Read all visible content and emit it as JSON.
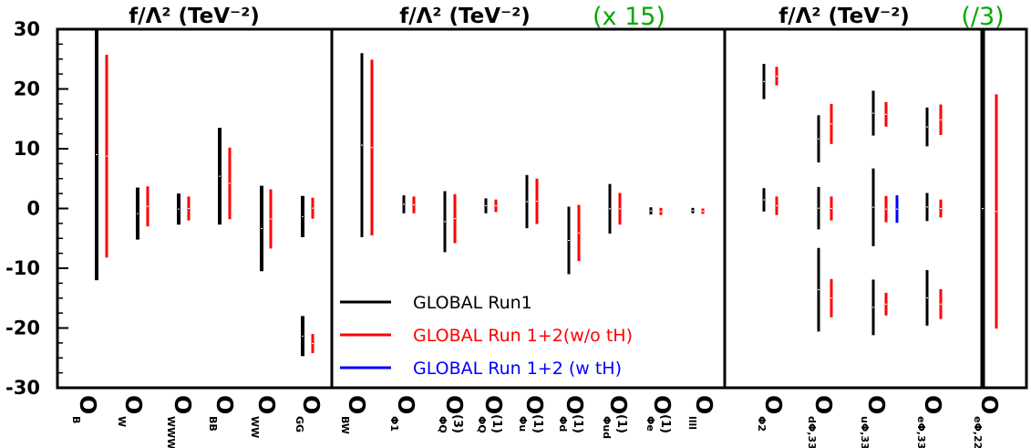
{
  "chart_data": {
    "type": "error-bar",
    "ylim": [
      -30,
      30
    ],
    "yticks": [
      -30,
      -20,
      -10,
      0,
      10,
      20,
      30
    ],
    "grid": false,
    "colors": {
      "run1": "#000000",
      "run12_wo_tH": "#ff0000",
      "run12_w_tH": "#0000ff",
      "scale_note": "#00aa00"
    },
    "legend": {
      "placement": "inside middle panel, bottom-left",
      "entries": [
        {
          "key": "run1",
          "label": "GLOBAL Run1",
          "color": "#000000"
        },
        {
          "key": "run12_wo_tH",
          "label": "GLOBAL Run 1+2(w/o tH)",
          "color": "#ff0000"
        },
        {
          "key": "run12_w_tH",
          "label": "GLOBAL Run 1+2 (w tH)",
          "color": "#0000ff"
        }
      ]
    },
    "panels": [
      {
        "title": "f/Λ² (TeV⁻²)",
        "scale_note": "",
        "operators": [
          {
            "base": "O",
            "sub": "B",
            "sup": "",
            "intervals": [
              {
                "series": "run1",
                "lo": -12,
                "hi": 30,
                "clipped_top": true
              },
              {
                "series": "run12_wo_tH",
                "lo": -8.2,
                "hi": 25.7
              }
            ]
          },
          {
            "base": "O",
            "sub": "W",
            "sup": "",
            "intervals": [
              {
                "series": "run1",
                "lo": -5.2,
                "hi": 3.5
              },
              {
                "series": "run12_wo_tH",
                "lo": -3.0,
                "hi": 3.7
              }
            ]
          },
          {
            "base": "O",
            "sub": "WWW",
            "sup": "",
            "intervals": [
              {
                "series": "run1",
                "lo": -2.7,
                "hi": 2.5
              },
              {
                "series": "run12_wo_tH",
                "lo": -2.0,
                "hi": 2.0
              }
            ]
          },
          {
            "base": "O",
            "sub": "BB",
            "sup": "",
            "intervals": [
              {
                "series": "run1",
                "lo": -2.7,
                "hi": 13.5
              },
              {
                "series": "run12_wo_tH",
                "lo": -1.8,
                "hi": 10.2
              }
            ]
          },
          {
            "base": "O",
            "sub": "WW",
            "sup": "",
            "intervals": [
              {
                "series": "run1",
                "lo": -10.5,
                "hi": 3.8
              },
              {
                "series": "run12_wo_tH",
                "lo": -6.7,
                "hi": 3.2
              }
            ]
          },
          {
            "base": "O",
            "sub": "GG",
            "sup": "",
            "intervals": [
              {
                "series": "run1",
                "lo": -4.8,
                "hi": 2.1
              },
              {
                "series": "run12_wo_tH",
                "lo": -1.7,
                "hi": 1.8
              },
              {
                "series": "run1",
                "lo": -24.7,
                "hi": -18.0
              },
              {
                "series": "run12_wo_tH",
                "lo": -24.2,
                "hi": -21.0
              }
            ]
          }
        ]
      },
      {
        "title": "f/Λ² (TeV⁻²)",
        "scale_note": "(x 15)",
        "operators": [
          {
            "base": "O",
            "sub": "BW",
            "sup": "",
            "intervals": [
              {
                "series": "run1",
                "lo": -4.8,
                "hi": 26.0
              },
              {
                "series": "run12_wo_tH",
                "lo": -4.5,
                "hi": 24.9
              }
            ]
          },
          {
            "base": "O",
            "sub": "Φ1",
            "sup": "",
            "intervals": [
              {
                "series": "run1",
                "lo": -0.8,
                "hi": 2.2
              },
              {
                "series": "run12_wo_tH",
                "lo": -0.8,
                "hi": 2.0
              }
            ]
          },
          {
            "base": "O",
            "sub": "ΦQ",
            "sup": "(3)",
            "intervals": [
              {
                "series": "run1",
                "lo": -7.3,
                "hi": 2.9
              },
              {
                "series": "run12_wo_tH",
                "lo": -5.8,
                "hi": 2.4
              }
            ]
          },
          {
            "base": "O",
            "sub": "ΦQ",
            "sup": "(1)",
            "intervals": [
              {
                "series": "run1",
                "lo": -0.8,
                "hi": 1.7
              },
              {
                "series": "run12_wo_tH",
                "lo": -0.6,
                "hi": 1.5
              }
            ]
          },
          {
            "base": "O",
            "sub": "Φu",
            "sup": "(1)",
            "intervals": [
              {
                "series": "run1",
                "lo": -3.3,
                "hi": 5.6
              },
              {
                "series": "run12_wo_tH",
                "lo": -2.6,
                "hi": 5.0
              }
            ]
          },
          {
            "base": "O",
            "sub": "Φd",
            "sup": "(1)",
            "intervals": [
              {
                "series": "run1",
                "lo": -11.0,
                "hi": 0.3
              },
              {
                "series": "run12_wo_tH",
                "lo": -8.8,
                "hi": 0.6
              }
            ]
          },
          {
            "base": "O",
            "sub": "Φud",
            "sup": "(1)",
            "intervals": [
              {
                "series": "run1",
                "lo": -4.2,
                "hi": 4.1
              },
              {
                "series": "run12_wo_tH",
                "lo": -2.7,
                "hi": 2.6
              }
            ]
          },
          {
            "base": "O",
            "sub": "Φe",
            "sup": "(1)",
            "intervals": [
              {
                "series": "run1",
                "lo": -1.0,
                "hi": 0.2
              },
              {
                "series": "run12_wo_tH",
                "lo": -1.1,
                "hi": 0.1
              }
            ]
          },
          {
            "base": "O",
            "sub": "llll",
            "sup": "",
            "intervals": [
              {
                "series": "run1",
                "lo": -0.8,
                "hi": 0.1
              },
              {
                "series": "run12_wo_tH",
                "lo": -0.9,
                "hi": 0.0
              }
            ]
          }
        ]
      },
      {
        "title": "f/Λ² (TeV⁻²)",
        "scale_note": "(/3)",
        "operators": [
          {
            "base": "O",
            "sub": "Φ2",
            "sup": "",
            "intervals": [
              {
                "series": "run1",
                "lo": 18.3,
                "hi": 24.2
              },
              {
                "series": "run12_wo_tH",
                "lo": 20.6,
                "hi": 23.7
              },
              {
                "series": "run1",
                "lo": -0.5,
                "hi": 3.4
              },
              {
                "series": "run12_wo_tH",
                "lo": -1.1,
                "hi": 2.0
              }
            ]
          },
          {
            "base": "O",
            "sub": "dΦ,33",
            "sup": "",
            "intervals": [
              {
                "series": "run1",
                "lo": 7.7,
                "hi": 15.6
              },
              {
                "series": "run12_wo_tH",
                "lo": 10.8,
                "hi": 17.5
              },
              {
                "series": "run1",
                "lo": -3.5,
                "hi": 3.6
              },
              {
                "series": "run12_wo_tH",
                "lo": -2.0,
                "hi": 2.0
              },
              {
                "series": "run1",
                "lo": -20.6,
                "hi": -6.6
              },
              {
                "series": "run12_wo_tH",
                "lo": -18.2,
                "hi": -11.8
              }
            ]
          },
          {
            "base": "O",
            "sub": "uΦ,33",
            "sup": "",
            "intervals": [
              {
                "series": "run1",
                "lo": 12.2,
                "hi": 19.7
              },
              {
                "series": "run12_wo_tH",
                "lo": 13.7,
                "hi": 17.8
              },
              {
                "series": "run1",
                "lo": -6.3,
                "hi": 6.7
              },
              {
                "series": "run12_wo_tH",
                "lo": -2.3,
                "hi": 2.1
              },
              {
                "series": "run12_w_tH",
                "lo": -2.4,
                "hi": 2.2
              },
              {
                "series": "run1",
                "lo": -21.2,
                "hi": -11.9
              },
              {
                "series": "run12_wo_tH",
                "lo": -17.9,
                "hi": -14.1
              }
            ]
          },
          {
            "base": "O",
            "sub": "eΦ,33",
            "sup": "",
            "intervals": [
              {
                "series": "run1",
                "lo": 10.4,
                "hi": 16.9
              },
              {
                "series": "run12_wo_tH",
                "lo": 12.3,
                "hi": 17.4
              },
              {
                "series": "run1",
                "lo": -2.1,
                "hi": 2.6
              },
              {
                "series": "run12_wo_tH",
                "lo": -1.5,
                "hi": 1.5
              },
              {
                "series": "run1",
                "lo": -19.6,
                "hi": -10.3
              },
              {
                "series": "run12_wo_tH",
                "lo": -18.5,
                "hi": -13.5
              }
            ]
          },
          {
            "base": "O",
            "sub": "eΦ,22",
            "sup": "",
            "intervals": [
              {
                "series": "run1",
                "lo": -30,
                "hi": 30,
                "clipped_top": true,
                "clipped_bottom": true
              },
              {
                "series": "run12_wo_tH",
                "lo": -20.1,
                "hi": 19.1
              }
            ]
          }
        ]
      }
    ]
  }
}
